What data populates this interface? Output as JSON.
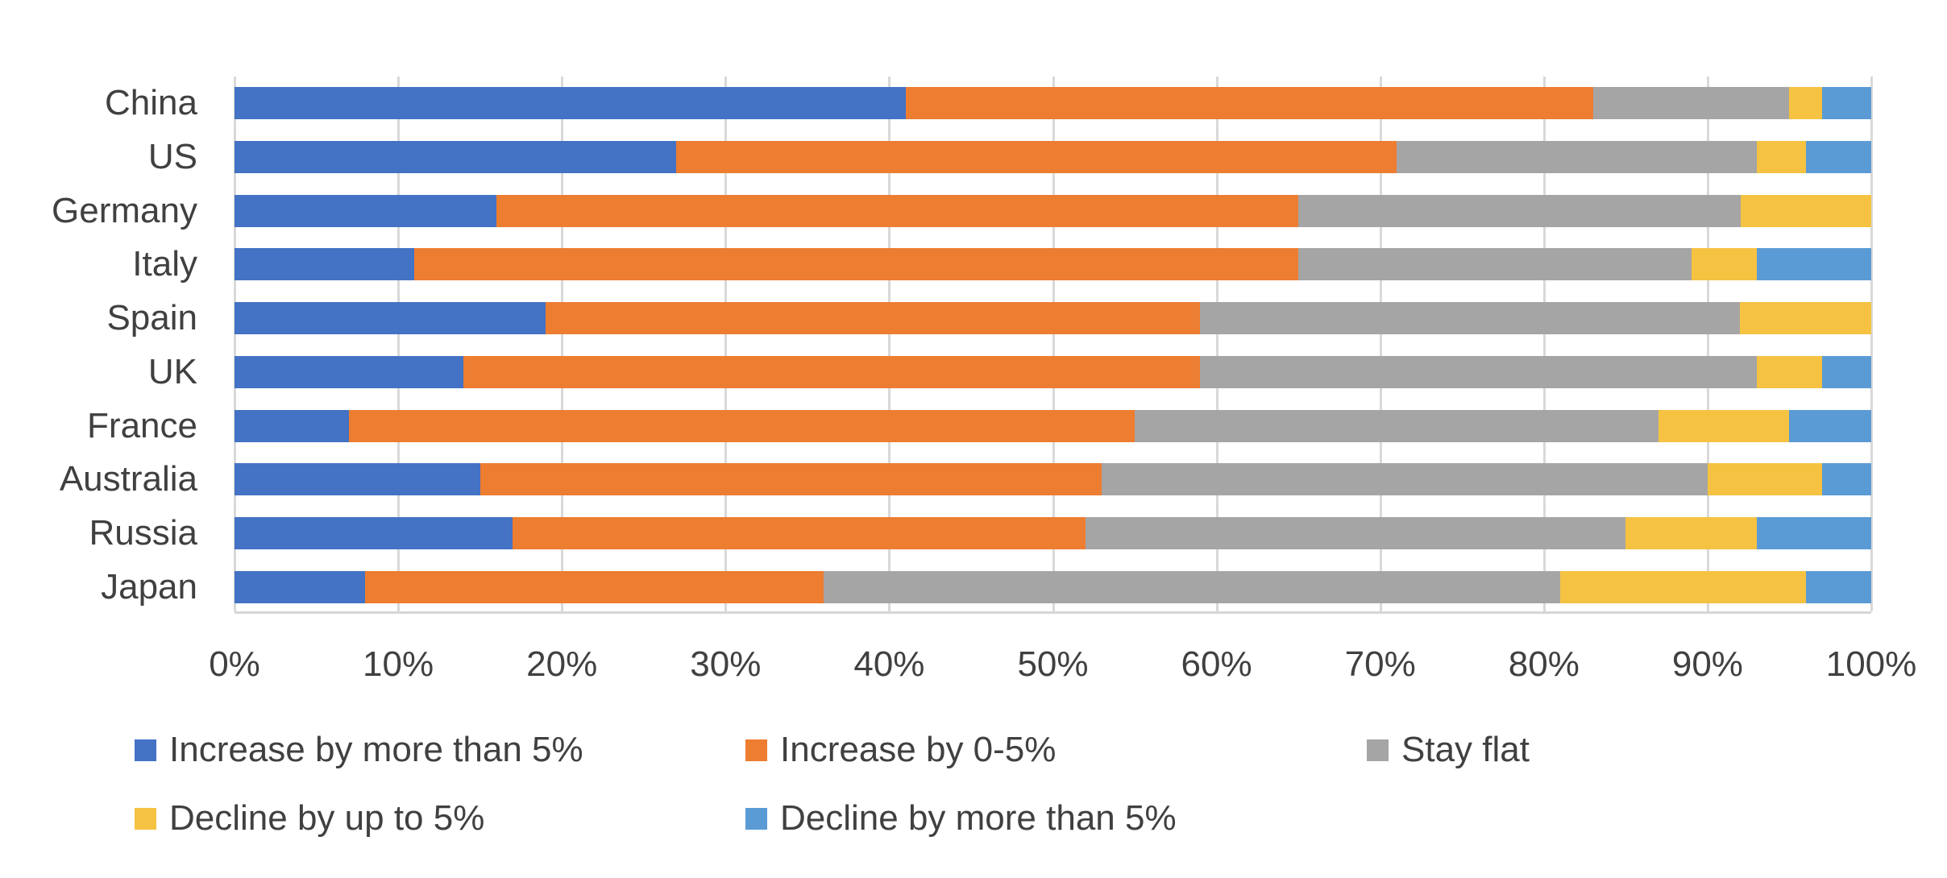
{
  "chart_data": {
    "type": "bar",
    "orientation": "horizontal",
    "stacked": true,
    "title": "",
    "xlabel": "",
    "ylabel": "",
    "grid": true,
    "legend_position": "bottom",
    "x_axis": {
      "min": 0,
      "max": 100,
      "tick_labels": [
        "0%",
        "10%",
        "20%",
        "30%",
        "40%",
        "50%",
        "60%",
        "70%",
        "80%",
        "90%",
        "100%"
      ]
    },
    "categories": [
      "China",
      "US",
      "Germany",
      "Italy",
      "Spain",
      "UK",
      "France",
      "Australia",
      "Russia",
      "Japan"
    ],
    "series": [
      {
        "name": "Increase by more than 5%",
        "color": "#4472C4",
        "values": [
          41,
          27,
          16,
          11,
          19,
          14,
          7,
          15,
          17,
          8
        ]
      },
      {
        "name": "Increase by 0-5%",
        "color": "#ED7D31",
        "values": [
          42,
          44,
          49,
          54,
          40,
          45,
          48,
          38,
          35,
          28
        ]
      },
      {
        "name": "Stay flat",
        "color": "#A5A5A5",
        "values": [
          12,
          22,
          27,
          24,
          33,
          34,
          32,
          37,
          33,
          45
        ]
      },
      {
        "name": "Decline by up to 5%",
        "color": "#F5C242",
        "values": [
          2,
          3,
          8,
          4,
          8,
          4,
          8,
          7,
          8,
          15
        ]
      },
      {
        "name": "Decline by more than 5%",
        "color": "#5B9BD5",
        "values": [
          3,
          4,
          0,
          7,
          0,
          3,
          5,
          3,
          7,
          4
        ]
      }
    ]
  },
  "styles": {
    "background_color": "#FFFFFF",
    "text_color": "#404040",
    "gridline_color": "#D9D9D9",
    "axis_line_color": "#D6D6D6"
  }
}
